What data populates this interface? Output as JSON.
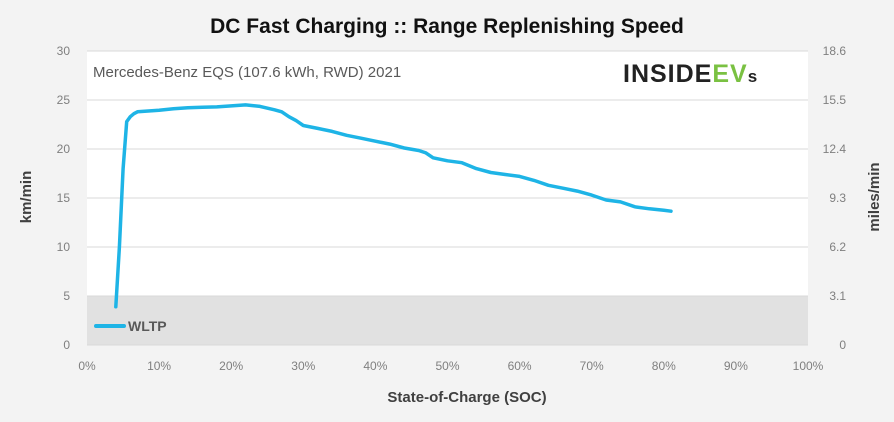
{
  "chart_data": {
    "type": "line",
    "title": "DC Fast Charging :: Range Replenishing Speed",
    "subtitle": "Mercedes-Benz EQS (107.6 kWh, RWD) 2021",
    "brand": {
      "main": "INSIDE",
      "accent": "EV",
      "tail": "s"
    },
    "xlabel": "State-of-Charge  (SOC)",
    "ylabel": "km/min",
    "y2label": "miles/min",
    "xlim": [
      0,
      100
    ],
    "ylim": [
      0,
      30
    ],
    "x_ticks": [
      "0%",
      "10%",
      "20%",
      "30%",
      "40%",
      "50%",
      "60%",
      "70%",
      "80%",
      "90%",
      "100%"
    ],
    "y_ticks": [
      "0",
      "5",
      "10",
      "15",
      "20",
      "25",
      "30"
    ],
    "y2_ticks": [
      "0",
      "3.1",
      "6.2",
      "9.3",
      "12.4",
      "15.5",
      "18.6"
    ],
    "shaded_band": {
      "y_min": 0,
      "y_max": 5,
      "color": "#e1e1e1"
    },
    "grid": true,
    "legend": {
      "position": "bottom-left"
    },
    "series": [
      {
        "name": "WLTP",
        "color": "#1eb4e6",
        "x": [
          4,
          4.5,
          5,
          5.5,
          6,
          6.5,
          7,
          8,
          10,
          12,
          14,
          16,
          18,
          20,
          22,
          24,
          26,
          27,
          28,
          29,
          30,
          32,
          34,
          36,
          38,
          40,
          42,
          44,
          46,
          47,
          48,
          50,
          52,
          54,
          56,
          58,
          60,
          62,
          64,
          66,
          68,
          70,
          72,
          74,
          76,
          78,
          80,
          81
        ],
        "values": [
          3.9,
          10,
          18,
          22.8,
          23.3,
          23.6,
          23.8,
          23.85,
          23.95,
          24.1,
          24.2,
          24.25,
          24.3,
          24.4,
          24.5,
          24.35,
          24.0,
          23.8,
          23.3,
          22.9,
          22.4,
          22.1,
          21.8,
          21.4,
          21.1,
          20.8,
          20.5,
          20.1,
          19.85,
          19.6,
          19.1,
          18.8,
          18.6,
          18.0,
          17.6,
          17.4,
          17.2,
          16.8,
          16.3,
          16.0,
          15.7,
          15.3,
          14.8,
          14.6,
          14.1,
          13.9,
          13.75,
          13.65
        ]
      }
    ]
  }
}
